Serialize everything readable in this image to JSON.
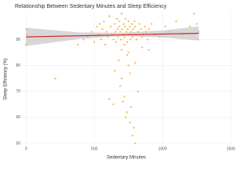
{
  "chart_data": {
    "type": "scatter",
    "title": "Relationship Between Sedentary Minutes and Sleep Efficiency",
    "x_label": "Sedentary Minutes",
    "y_label": "Sleep Efficiency (%)",
    "color": "#f7a21b",
    "line_color": "#d62728",
    "band_color": "#bdbdbd",
    "grid": true,
    "xlim": [
      -30,
      1510
    ],
    "ylim": [
      49.4,
      100.4
    ],
    "xticks": [
      0,
      500,
      1000,
      1500
    ],
    "yticks": [
      50,
      60,
      70,
      80,
      90
    ],
    "x": [
      0,
      3,
      5,
      215,
      380,
      420,
      450,
      480,
      500,
      520,
      530,
      540,
      550,
      560,
      570,
      580,
      590,
      600,
      610,
      620,
      630,
      640,
      650,
      655,
      660,
      665,
      670,
      675,
      680,
      685,
      690,
      695,
      700,
      705,
      710,
      715,
      720,
      725,
      730,
      735,
      740,
      745,
      750,
      755,
      760,
      765,
      770,
      775,
      780,
      785,
      790,
      795,
      800,
      810,
      820,
      830,
      840,
      850,
      860,
      870,
      880,
      890,
      900,
      920,
      950,
      980,
      1020,
      1050,
      1100,
      1150,
      1200,
      1230,
      1250,
      1260,
      1265,
      700,
      720,
      740,
      760,
      780,
      800,
      650,
      690,
      710,
      730,
      750,
      770,
      790,
      820,
      680,
      740,
      760,
      800,
      700,
      720,
      750,
      850,
      610,
      900,
      640
    ],
    "y": [
      88,
      94,
      92,
      75,
      88,
      90,
      91,
      93,
      89,
      95,
      92,
      96,
      90,
      94,
      97,
      88,
      93,
      91,
      99,
      95,
      92,
      90,
      96,
      93,
      89,
      98,
      94,
      91,
      95,
      97,
      93,
      90,
      100,
      94,
      92,
      96,
      91,
      95,
      98,
      93,
      89,
      94,
      97,
      92,
      95,
      90,
      93,
      96,
      91,
      94,
      92,
      97,
      95,
      90,
      93,
      96,
      94,
      91,
      92,
      95,
      93,
      90,
      94,
      96,
      92,
      91,
      95,
      93,
      97,
      92,
      95,
      100,
      96,
      90,
      93,
      75,
      68,
      62,
      58,
      53,
      50,
      78,
      72,
      66,
      60,
      80,
      64,
      56,
      70,
      82,
      84,
      77,
      81,
      86,
      88,
      85,
      87,
      67,
      86,
      65
    ],
    "trend": {
      "x": [
        0,
        1265
      ],
      "y": [
        91,
        92.4
      ]
    },
    "band": {
      "x": [
        0,
        400,
        700,
        1000,
        1265
      ],
      "lower": [
        87.5,
        90.3,
        91.4,
        90.8,
        89.6
      ],
      "upper": [
        94.5,
        92.7,
        92.6,
        93.5,
        95.1
      ]
    }
  }
}
